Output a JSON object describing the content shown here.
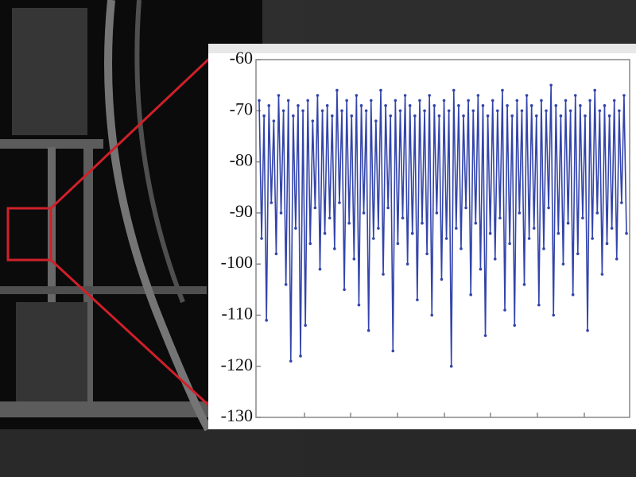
{
  "chart_data": {
    "type": "line",
    "series": [
      {
        "color": "#3344aa",
        "values": [
          -68,
          -95,
          -71,
          -111,
          -69,
          -88,
          -72,
          -98,
          -67,
          -90,
          -70,
          -104,
          -68,
          -119,
          -71,
          -93,
          -69,
          -118,
          -70,
          -112,
          -68,
          -96,
          -72,
          -89,
          -67,
          -101,
          -70,
          -94,
          -69,
          -91,
          -71,
          -97,
          -66,
          -88,
          -70,
          -105,
          -68,
          -92,
          -71,
          -99,
          -67,
          -108,
          -69,
          -90,
          -70,
          -113,
          -68,
          -95,
          -72,
          -93,
          -66,
          -102,
          -69,
          -89,
          -71,
          -117,
          -68,
          -96,
          -70,
          -91,
          -67,
          -100,
          -69,
          -94,
          -71,
          -107,
          -68,
          -92,
          -70,
          -98,
          -67,
          -110,
          -69,
          -90,
          -71,
          -103,
          -68,
          -95,
          -70,
          -120,
          -66,
          -93,
          -69,
          -97,
          -71,
          -89,
          -68,
          -106,
          -70,
          -92,
          -67,
          -101,
          -69,
          -114,
          -71,
          -94,
          -68,
          -99,
          -70,
          -91,
          -66,
          -109,
          -69,
          -96,
          -71,
          -112,
          -68,
          -90,
          -70,
          -104,
          -67,
          -95,
          -69,
          -93,
          -71,
          -108,
          -68,
          -97,
          -70,
          -89,
          -65,
          -110,
          -69,
          -94,
          -71,
          -100,
          -68,
          -92,
          -70,
          -106,
          -67,
          -98,
          -69,
          -91,
          -71,
          -113,
          -68,
          -95,
          -66,
          -90,
          -70,
          -102,
          -69,
          -96,
          -71,
          -93,
          -68,
          -99,
          -70,
          -88,
          -67,
          -94
        ]
      }
    ],
    "ylim": [
      -130,
      -60
    ],
    "yticks": [
      -130,
      -120,
      -110,
      -100,
      -90,
      -80,
      -70,
      -60
    ]
  }
}
